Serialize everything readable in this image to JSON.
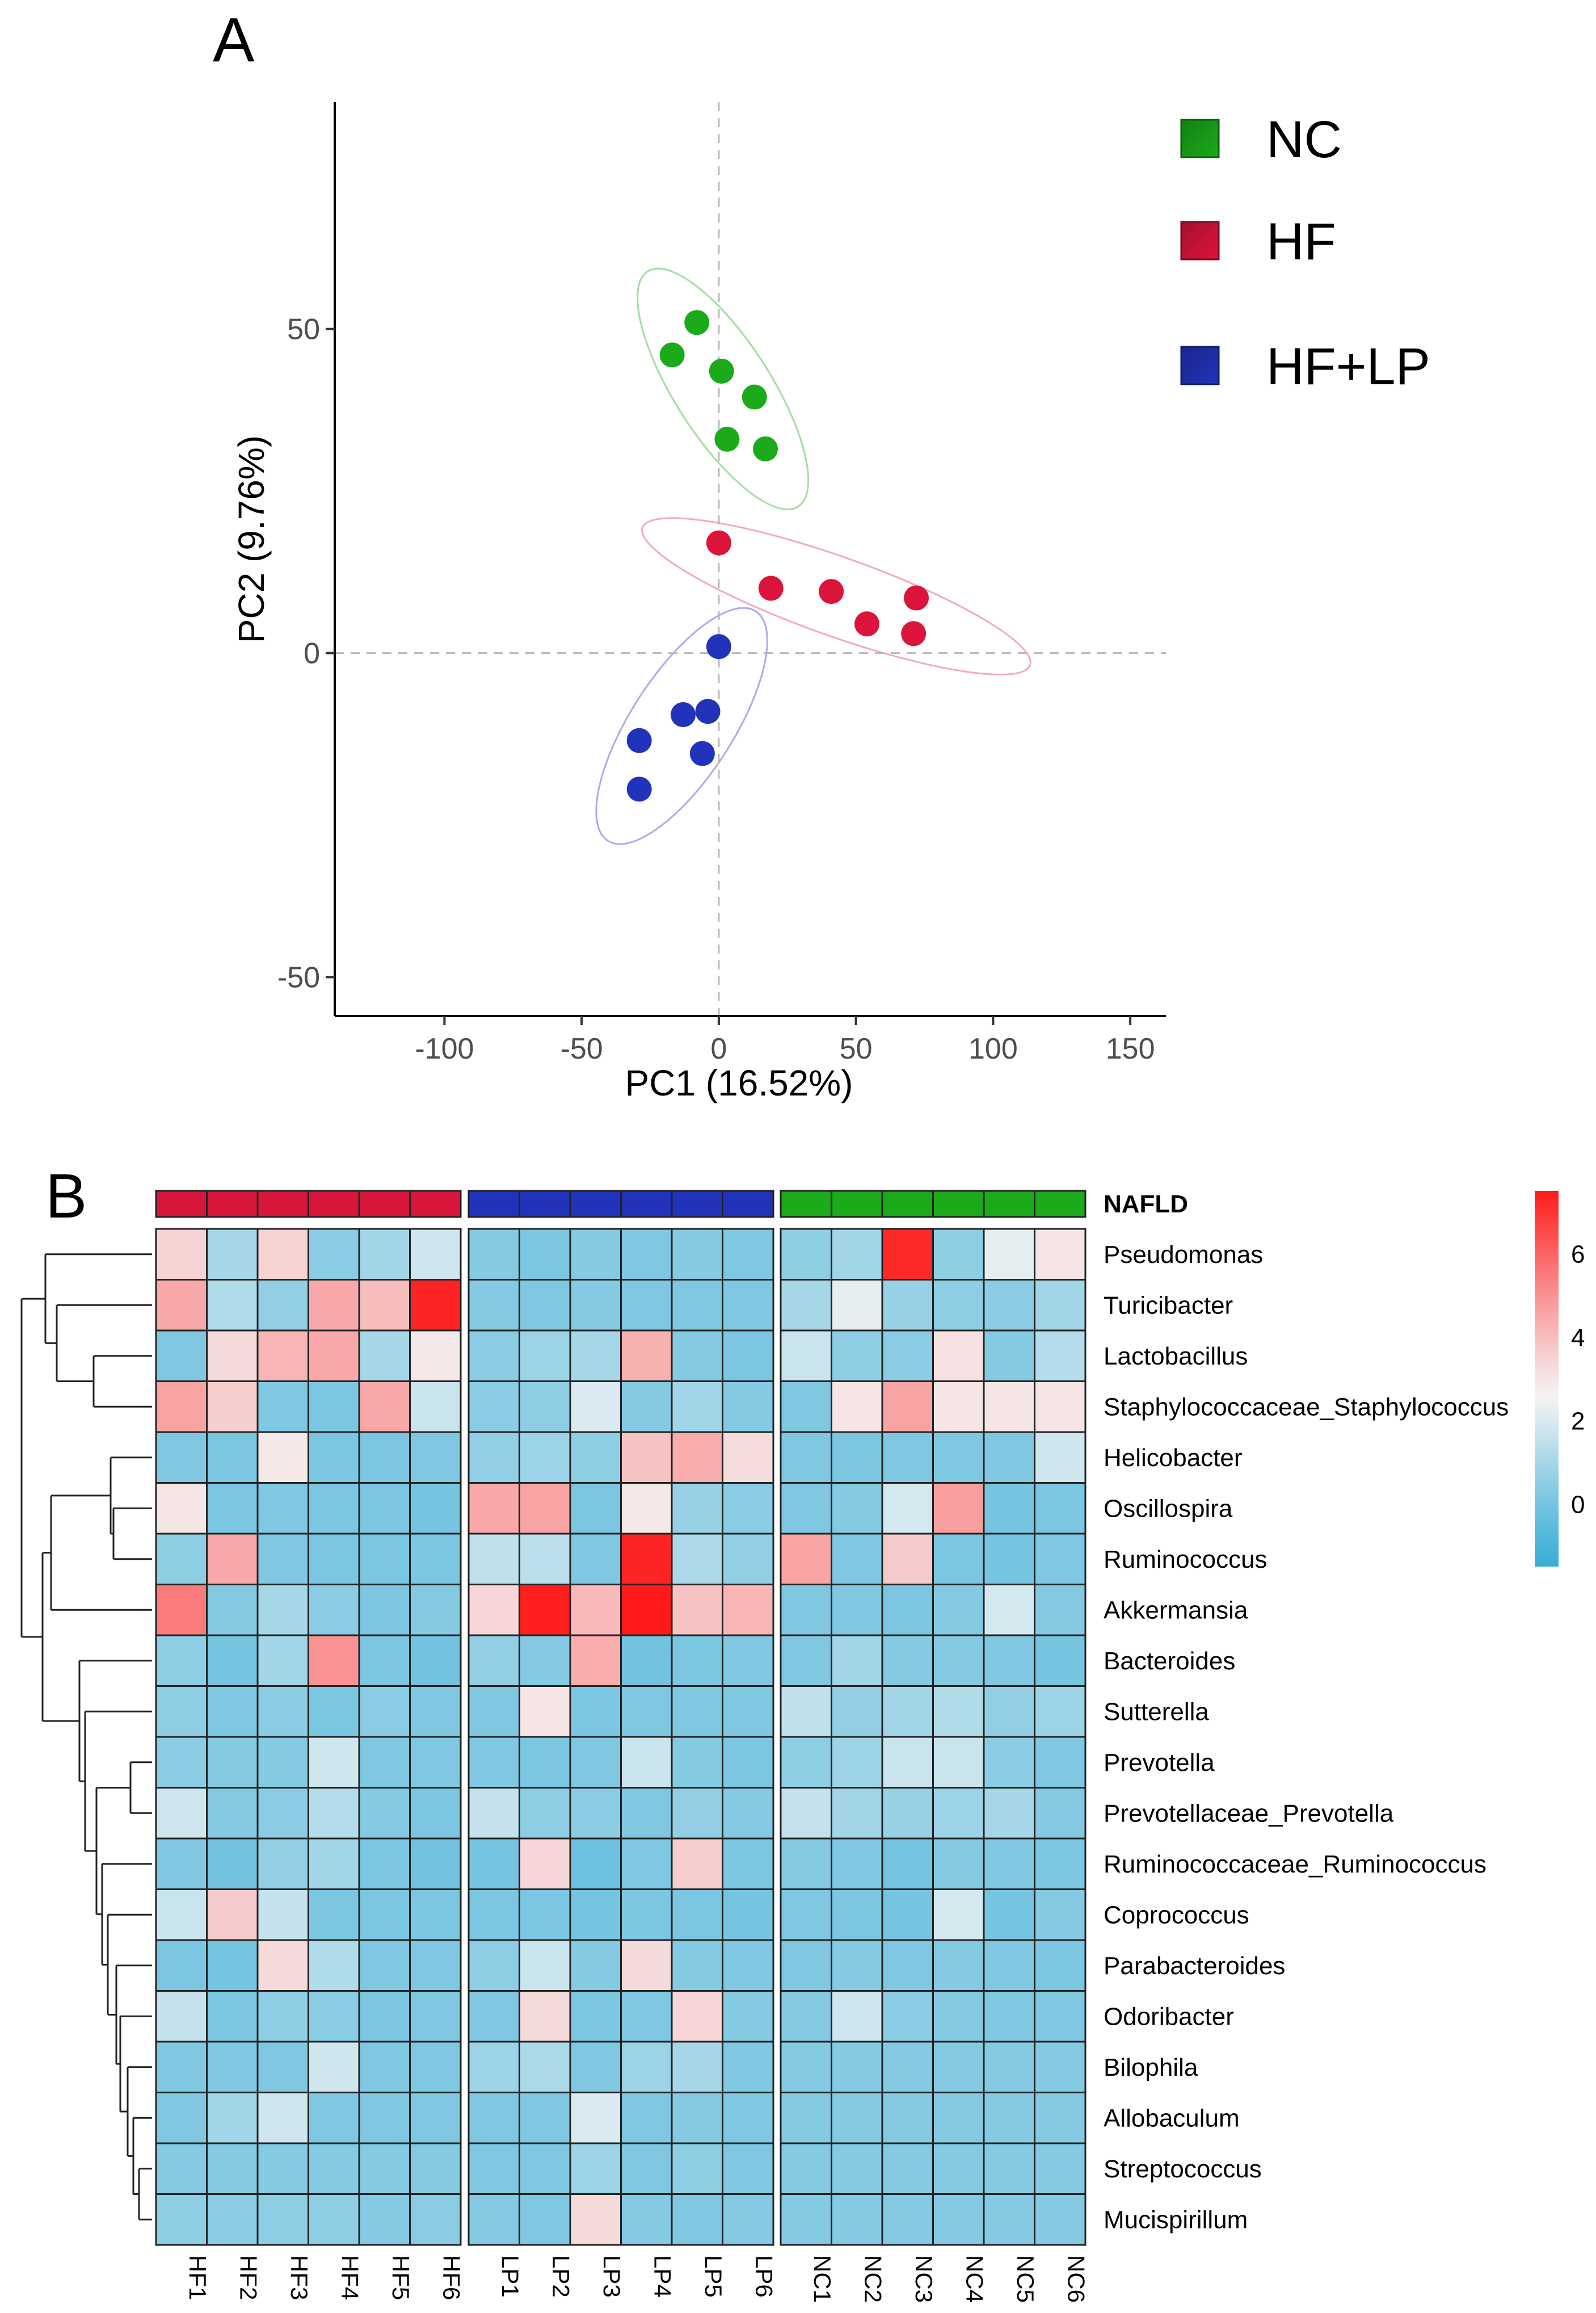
{
  "panel_a": {
    "label": "A"
  },
  "panel_b": {
    "label": "B"
  },
  "chart_data": [
    {
      "type": "scatter",
      "xlabel": "PC1 (16.52%)",
      "ylabel": "PC2 (9.76%)",
      "xlim": [
        -140,
        163
      ],
      "ylim": [
        -56,
        85
      ],
      "xticks": [
        "-100",
        "-50",
        "0",
        "50",
        "100",
        "150"
      ],
      "yticks": [
        "-50",
        "0",
        "50"
      ],
      "grid": false,
      "reference_lines": {
        "x": 0,
        "y": 0,
        "style": "dashed"
      },
      "legend_position": "top-right",
      "series": [
        {
          "name": "NC",
          "color": "#1aaa1a",
          "ellipse_color": "#9ee09e",
          "points": [
            [
              -8,
              51
            ],
            [
              -17,
              46
            ],
            [
              1,
              43.5
            ],
            [
              13,
              39.5
            ],
            [
              3,
              33
            ],
            [
              17,
              31.5
            ]
          ]
        },
        {
          "name": "HF",
          "color": "#dc143c",
          "ellipse_color": "#f4aab8",
          "points": [
            [
              0,
              17
            ],
            [
              19,
              10
            ],
            [
              41,
              9.5
            ],
            [
              54,
              4.5
            ],
            [
              72,
              8.5
            ],
            [
              71,
              3
            ]
          ]
        },
        {
          "name": "HF+LP",
          "color": "#2233bb",
          "ellipse_color": "#a9abee",
          "points": [
            [
              0,
              1
            ],
            [
              -4,
              -9
            ],
            [
              -13,
              -9.5
            ],
            [
              -29,
              -13.5
            ],
            [
              -6,
              -15.5
            ],
            [
              -29,
              -21
            ]
          ]
        }
      ]
    },
    {
      "type": "heatmap",
      "annotation_label": "NAFLD",
      "groups": [
        {
          "columns": [
            "HF1",
            "HF2",
            "HF3",
            "HF4",
            "HF5",
            "HF6"
          ],
          "color": "#d8163c"
        },
        {
          "columns": [
            "LP1",
            "LP2",
            "LP3",
            "LP4",
            "LP5",
            "LP6"
          ],
          "color": "#2233bb"
        },
        {
          "columns": [
            "NC1",
            "NC2",
            "NC3",
            "NC4",
            "NC5",
            "NC6"
          ],
          "color": "#1aaa1a"
        }
      ],
      "rows": [
        "Pseudomonas",
        "Turicibacter",
        "Lactobacillus",
        "Staphylococcaceae_Staphylococcus",
        "Helicobacter",
        "Oscillospira",
        "Ruminococcus",
        "Akkermansia",
        "Bacteroides",
        "Sutterella",
        "Prevotella",
        "Prevotellaceae_Prevotella",
        "Ruminococcaceae_Ruminococcus",
        "Coprococcus",
        "Parabacteroides",
        "Odoribacter",
        "Bilophila",
        "Allobaculum",
        "Streptococcus",
        "Mucispirillum"
      ],
      "values": [
        [
          3.5,
          1.0,
          3.5,
          0.4,
          0.9,
          1.8,
          0.3,
          0.1,
          0.3,
          0.2,
          0.3,
          0.2,
          0.5,
          0.9,
          7.2,
          0.5,
          2.2,
          3.0
        ],
        [
          4.5,
          1.2,
          0.6,
          4.5,
          4.0,
          7.3,
          0.3,
          0.2,
          0.3,
          0.2,
          0.2,
          0.2,
          1.0,
          2.2,
          0.7,
          0.5,
          0.4,
          0.9
        ],
        [
          0.2,
          3.3,
          4.2,
          4.5,
          1.0,
          2.9,
          0.4,
          0.8,
          1.0,
          4.3,
          0.3,
          0.1,
          1.7,
          0.5,
          0.4,
          3.1,
          0.3,
          1.3
        ],
        [
          4.6,
          3.6,
          0.2,
          0.1,
          4.5,
          1.7,
          0.4,
          0.5,
          2.0,
          0.3,
          0.9,
          0.3,
          0.2,
          3.0,
          4.6,
          3.0,
          3.0,
          3.0
        ],
        [
          0.2,
          0.1,
          2.9,
          0.1,
          0.1,
          0.2,
          0.6,
          0.8,
          0.5,
          3.9,
          4.4,
          3.2,
          0.2,
          0.1,
          0.2,
          0.2,
          0.2,
          1.8
        ],
        [
          3.0,
          0.1,
          0.2,
          0.1,
          0.1,
          0.0,
          4.5,
          4.6,
          0.1,
          2.9,
          0.7,
          0.4,
          0.2,
          0.3,
          1.9,
          4.7,
          0.0,
          0.1
        ],
        [
          0.5,
          4.5,
          0.2,
          0.1,
          0.1,
          0.1,
          1.5,
          1.4,
          0.2,
          7.3,
          1.1,
          0.6,
          4.6,
          0.2,
          3.7,
          0.1,
          0.0,
          0.2
        ],
        [
          5.5,
          0.3,
          1.0,
          0.4,
          0.1,
          0.3,
          3.4,
          7.4,
          4.1,
          7.5,
          3.9,
          4.2,
          0.2,
          0.2,
          0.1,
          0.3,
          1.9,
          0.3
        ],
        [
          0.5,
          0.0,
          0.9,
          5.0,
          0.1,
          -0.1,
          0.6,
          0.3,
          4.4,
          -0.1,
          0.1,
          0.2,
          0.2,
          0.9,
          0.3,
          0.3,
          0.2,
          0.0
        ],
        [
          0.5,
          0.2,
          0.4,
          0.1,
          0.4,
          0.2,
          0.2,
          3.0,
          0.1,
          0.2,
          0.2,
          0.2,
          1.5,
          0.6,
          0.9,
          1.2,
          0.6,
          0.8
        ],
        [
          0.4,
          0.3,
          0.3,
          1.8,
          0.2,
          0.2,
          0.2,
          0.1,
          0.2,
          1.7,
          0.3,
          0.1,
          0.5,
          0.8,
          1.7,
          1.7,
          0.4,
          0.2
        ],
        [
          1.8,
          0.3,
          0.4,
          1.3,
          0.3,
          0.1,
          1.6,
          0.5,
          0.4,
          0.2,
          0.6,
          0.3,
          1.6,
          0.9,
          0.7,
          0.8,
          1.0,
          0.3
        ],
        [
          0.2,
          -0.1,
          0.6,
          0.9,
          0.1,
          -0.1,
          0.0,
          3.4,
          -0.2,
          0.2,
          3.6,
          0.1,
          0.3,
          0.2,
          0.0,
          0.3,
          0.2,
          0.1
        ],
        [
          1.7,
          3.7,
          1.6,
          0.1,
          0.1,
          0.1,
          0.1,
          0.1,
          0.0,
          0.1,
          0.1,
          0.0,
          0.2,
          0.1,
          0.0,
          1.9,
          0.0,
          0.3
        ],
        [
          0.1,
          0.0,
          3.3,
          1.2,
          0.2,
          0.2,
          0.5,
          1.7,
          0.3,
          3.3,
          0.3,
          0.2,
          0.2,
          0.3,
          0.2,
          0.3,
          0.2,
          0.1
        ],
        [
          1.6,
          0.1,
          0.5,
          0.4,
          0.1,
          0.2,
          0.2,
          3.3,
          0.1,
          0.2,
          3.4,
          0.3,
          0.3,
          1.8,
          0.4,
          0.3,
          0.2,
          0.2
        ],
        [
          0.2,
          0.2,
          0.2,
          1.8,
          0.2,
          0.2,
          0.8,
          1.1,
          0.2,
          0.8,
          1.0,
          0.2,
          0.3,
          0.3,
          0.3,
          0.3,
          0.3,
          0.3
        ],
        [
          0.2,
          0.9,
          1.8,
          0.2,
          0.2,
          0.2,
          0.2,
          0.2,
          2.0,
          0.2,
          0.3,
          0.2,
          0.3,
          0.3,
          0.3,
          0.3,
          0.3,
          0.3
        ],
        [
          0.3,
          0.3,
          0.3,
          0.3,
          0.3,
          0.3,
          0.2,
          0.2,
          0.8,
          0.2,
          0.5,
          0.2,
          0.3,
          0.3,
          0.3,
          0.3,
          0.3,
          0.3
        ],
        [
          0.5,
          0.4,
          0.5,
          0.5,
          0.3,
          0.4,
          0.3,
          0.2,
          3.3,
          0.3,
          0.2,
          0.3,
          0.3,
          0.3,
          0.3,
          0.3,
          0.3,
          0.3
        ]
      ],
      "colorbar": {
        "ticks": [
          "6",
          "4",
          "2",
          "0"
        ],
        "min": -1.5,
        "max": 7.5,
        "colors": [
          "#3aaed6",
          "#f4f4f4",
          "#ff1a1a"
        ]
      },
      "row_dendrogram": "shown on left"
    }
  ]
}
